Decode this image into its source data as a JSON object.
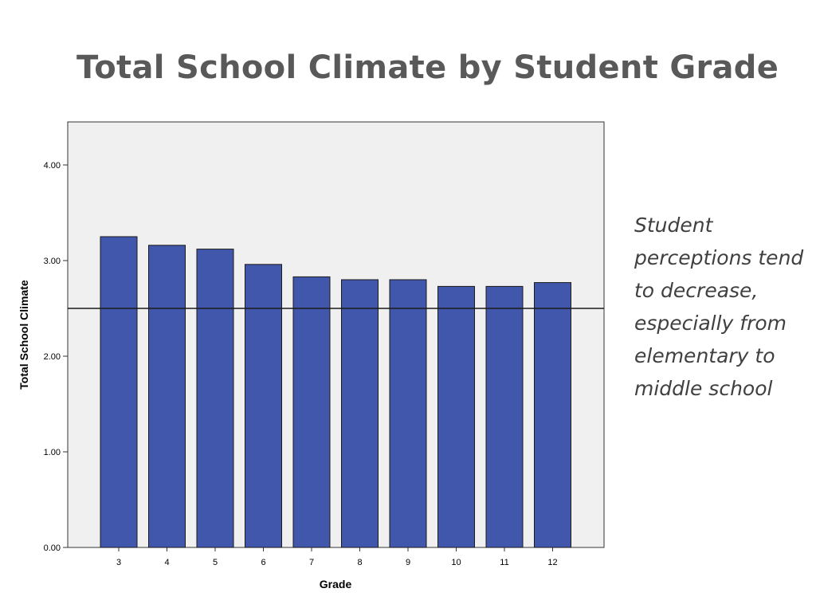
{
  "slide": {
    "title": "Total School Climate by Student Grade",
    "annotation": "Student perceptions tend to decrease, especially from elementary to middle school"
  },
  "chart_data": {
    "type": "bar",
    "categories": [
      "3",
      "4",
      "5",
      "6",
      "7",
      "8",
      "9",
      "10",
      "11",
      "12"
    ],
    "values": [
      3.25,
      3.16,
      3.12,
      2.96,
      2.83,
      2.8,
      2.8,
      2.73,
      2.73,
      2.77
    ],
    "reference_line": 2.5,
    "xlabel": "Grade",
    "ylabel": "Total School Climate",
    "ylim": [
      0,
      4.45
    ],
    "yticks": [
      "0.00",
      "1.00",
      "2.00",
      "3.00",
      "4.00"
    ],
    "grid": false,
    "colors": {
      "bar_fill": "#4157AB",
      "bar_stroke": "#1a1a1a",
      "plot_background": "#F0F0F0",
      "reference_line": "#1a1a1a"
    }
  }
}
